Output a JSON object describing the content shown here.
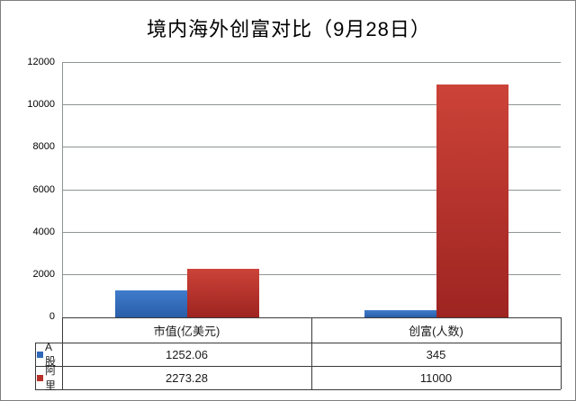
{
  "chart_data": {
    "type": "bar",
    "title": "境内海外创富对比（9月28日）",
    "categories": [
      "市值(亿美元)",
      "创富(人数)"
    ],
    "series": [
      {
        "name": "A股",
        "values": [
          1252.06,
          345
        ],
        "color": "#3f7ccb",
        "color_dark": "#2a5ea8",
        "legend_color": "#3068b8"
      },
      {
        "name": "阿里",
        "values": [
          2273.28,
          11000
        ],
        "color": "#cc4338",
        "color_dark": "#9e2421",
        "legend_color": "#b7302a"
      }
    ],
    "ylim": [
      0,
      12000
    ],
    "ytick_step": 2000,
    "ytick_labels": [
      "0",
      "2000",
      "4000",
      "6000",
      "8000",
      "10000",
      "12000"
    ],
    "grid": true,
    "legend_position": "table-left",
    "data_table_shown": true
  }
}
